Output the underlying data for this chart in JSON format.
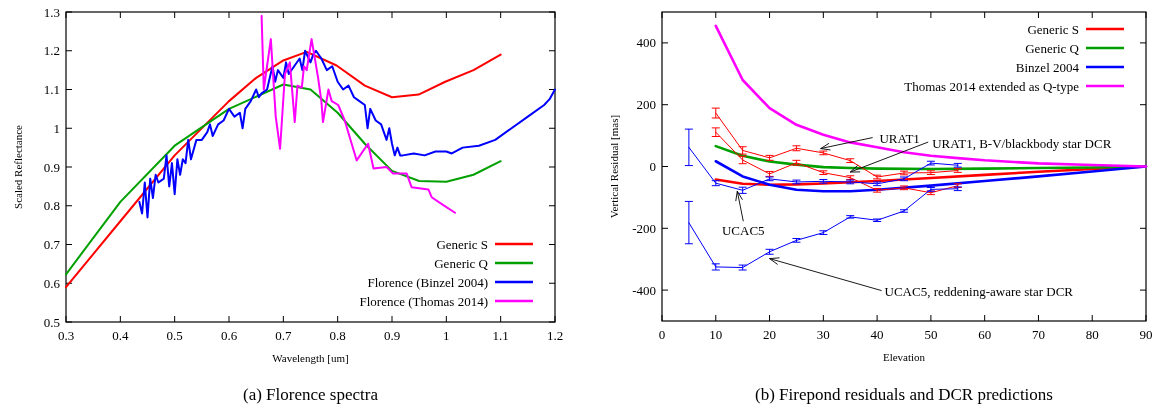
{
  "chart_data": [
    {
      "type": "line",
      "title": "(a)  Florence spectra",
      "xlabel": "Wavelength [um]",
      "ylabel": "Scaled Reflectance",
      "xlim": [
        0.3,
        1.2
      ],
      "ylim": [
        0.5,
        1.3
      ],
      "xticks": [
        0.3,
        0.4,
        0.5,
        0.6,
        0.7,
        0.8,
        0.9,
        1,
        1.1,
        1.2
      ],
      "yticks": [
        0.5,
        0.6,
        0.7,
        0.8,
        0.9,
        1,
        1.1,
        1.2,
        1.3
      ],
      "grid": false,
      "legend": "bottom right",
      "series": [
        {
          "name": "Generic S",
          "color": "#ff0000",
          "x": [
            0.3,
            0.4,
            0.5,
            0.6,
            0.65,
            0.7,
            0.743,
            0.798,
            0.85,
            0.9,
            0.949,
            0.998,
            1.05,
            1.1
          ],
          "values": [
            0.59,
            0.76,
            0.93,
            1.07,
            1.13,
            1.175,
            1.197,
            1.162,
            1.11,
            1.08,
            1.087,
            1.12,
            1.15,
            1.19
          ]
        },
        {
          "name": "Generic Q",
          "color": "#00a000",
          "x": [
            0.3,
            0.4,
            0.5,
            0.6,
            0.7,
            0.75,
            0.8,
            0.85,
            0.9,
            0.95,
            1.0,
            1.05,
            1.1
          ],
          "values": [
            0.623,
            0.81,
            0.955,
            1.05,
            1.113,
            1.1,
            1.04,
            0.96,
            0.89,
            0.864,
            0.862,
            0.88,
            0.915
          ]
        },
        {
          "name": "Florence (Binzel 2004)",
          "color": "#0000ff",
          "x": [
            0.435,
            0.44,
            0.445,
            0.45,
            0.455,
            0.46,
            0.465,
            0.47,
            0.48,
            0.485,
            0.49,
            0.495,
            0.5,
            0.505,
            0.51,
            0.515,
            0.52,
            0.525,
            0.53,
            0.54,
            0.55,
            0.56,
            0.565,
            0.57,
            0.58,
            0.59,
            0.6,
            0.61,
            0.62,
            0.625,
            0.63,
            0.64,
            0.65,
            0.655,
            0.66,
            0.67,
            0.68,
            0.685,
            0.69,
            0.7,
            0.705,
            0.71,
            0.72,
            0.73,
            0.735,
            0.74,
            0.75,
            0.755,
            0.76,
            0.77,
            0.78,
            0.79,
            0.8,
            0.81,
            0.82,
            0.83,
            0.84,
            0.85,
            0.855,
            0.86,
            0.87,
            0.88,
            0.89,
            0.895,
            0.9,
            0.905,
            0.91,
            0.915,
            0.92,
            0.94,
            0.96,
            0.98,
            1.0,
            1.01,
            1.03,
            1.06,
            1.09,
            1.12,
            1.15,
            1.18,
            1.19,
            1.2
          ],
          "values": [
            0.81,
            0.78,
            0.86,
            0.77,
            0.87,
            0.82,
            0.88,
            0.86,
            0.87,
            0.93,
            0.85,
            0.91,
            0.83,
            0.92,
            0.88,
            0.92,
            0.91,
            0.97,
            0.92,
            0.97,
            0.97,
            0.99,
            1.01,
            0.98,
            1.01,
            1.02,
            1.05,
            1.03,
            1.04,
            1.0,
            1.05,
            1.07,
            1.1,
            1.08,
            1.09,
            1.1,
            1.16,
            1.12,
            1.15,
            1.13,
            1.17,
            1.14,
            1.16,
            1.18,
            1.15,
            1.2,
            1.17,
            1.19,
            1.2,
            1.18,
            1.15,
            1.16,
            1.12,
            1.1,
            1.11,
            1.08,
            1.07,
            1.06,
            1.0,
            1.05,
            1.02,
            1.01,
            0.97,
            1.0,
            0.96,
            0.93,
            0.95,
            0.93,
            0.93,
            0.935,
            0.93,
            0.94,
            0.94,
            0.935,
            0.95,
            0.955,
            0.97,
            1.0,
            1.03,
            1.06,
            1.075,
            1.1
          ]
        },
        {
          "name": "Florence (Thomas 2014)",
          "color": "#ff00ff",
          "x": [
            0.66,
            0.664,
            0.677,
            0.686,
            0.694,
            0.703,
            0.712,
            0.721,
            0.726,
            0.734,
            0.738,
            0.743,
            0.752,
            0.764,
            0.77,
            0.773,
            0.783,
            0.789,
            0.801,
            0.813,
            0.835,
            0.856,
            0.866,
            0.89,
            0.902,
            0.927,
            0.936,
            0.967,
            0.973,
            0.991,
            1.016
          ],
          "values": [
            1.29,
            1.1,
            1.23,
            1.03,
            0.947,
            1.14,
            1.17,
            1.016,
            1.11,
            1.105,
            1.16,
            1.15,
            1.23,
            1.13,
            1.07,
            1.016,
            1.1,
            1.07,
            1.06,
            1.02,
            0.917,
            0.96,
            0.896,
            0.9,
            0.883,
            0.883,
            0.848,
            0.842,
            0.822,
            0.805,
            0.782
          ]
        }
      ]
    },
    {
      "type": "line",
      "title": "(b)  Firepond residuals and DCR predictions",
      "xlabel": "Elevation",
      "ylabel": "Vertical Residual [mas]",
      "xlim": [
        0,
        90
      ],
      "ylim": [
        -500,
        500
      ],
      "xticks": [
        0,
        10,
        20,
        30,
        40,
        50,
        60,
        70,
        80,
        90
      ],
      "yticks": [
        -400,
        -200,
        0,
        200,
        400
      ],
      "grid": false,
      "legend": "top right",
      "series": [
        {
          "name": "Generic S",
          "color": "#ff0000",
          "x": [
            10,
            15,
            20,
            25,
            30,
            40,
            50,
            60,
            70,
            80,
            90
          ],
          "values": [
            -42,
            -56,
            -59,
            -58,
            -55,
            -47,
            -37,
            -27,
            -17,
            -8,
            0
          ]
        },
        {
          "name": "Generic Q",
          "color": "#00a000",
          "x": [
            10,
            15,
            20,
            25,
            30,
            35,
            40,
            50,
            60,
            70,
            80,
            90
          ],
          "values": [
            66,
            35,
            16,
            6,
            -2,
            -5,
            -7,
            -8,
            -7,
            -5,
            -3,
            0
          ]
        },
        {
          "name": "Binzel 2004",
          "color": "#0000ff",
          "x": [
            10,
            15,
            20,
            25,
            30,
            35,
            40,
            50,
            60,
            70,
            80,
            90
          ],
          "values": [
            17,
            -32,
            -59,
            -75,
            -80,
            -80,
            -75,
            -62,
            -47,
            -32,
            -16,
            0
          ]
        },
        {
          "name": "Thomas 2014 extended as Q-type",
          "color": "#ff00ff",
          "x": [
            10,
            15,
            20,
            25,
            30,
            35,
            40,
            45,
            50,
            55,
            60,
            70,
            80,
            90
          ],
          "values": [
            455,
            280,
            189,
            135,
            103,
            78,
            62,
            46,
            35,
            27,
            20,
            10,
            5,
            0
          ]
        },
        {
          "color": "#ff0000",
          "x": [
            10,
            15,
            20,
            25,
            30,
            35,
            40,
            45,
            50,
            55
          ],
          "values": [
            173,
            52,
            28,
            59,
            44,
            19,
            -34,
            -21,
            -20,
            -13
          ],
          "errors": [
            16,
            12,
            8,
            8,
            6,
            6,
            6,
            6,
            6,
            6
          ]
        },
        {
          "color": "#ff0000",
          "x": [
            10,
            15,
            20,
            25,
            30,
            35,
            40,
            45,
            50,
            55
          ],
          "values": [
            111,
            21,
            -24,
            12,
            -20,
            -36,
            -77,
            -69,
            -85,
            -62
          ],
          "errors": [
            14,
            12,
            8,
            8,
            6,
            6,
            6,
            6,
            6,
            6
          ]
        },
        {
          "color": "#0000ff",
          "x": [
            5,
            10,
            15,
            20,
            25,
            30,
            35,
            40,
            45,
            50,
            55
          ],
          "values": [
            62,
            -54,
            -77,
            -40,
            -50,
            -48,
            -50,
            -56,
            -40,
            11,
            4
          ],
          "errors": [
            [
              3,
              121
            ],
            8,
            10,
            6,
            6,
            6,
            6,
            6,
            6,
            6,
            6
          ]
        },
        {
          "color": "#0000ff",
          "x": [
            5,
            10,
            15,
            20,
            25,
            30,
            35,
            40,
            45,
            50,
            55
          ],
          "values": [
            -182,
            -325,
            -327,
            -276,
            -239,
            -214,
            -163,
            -174,
            -144,
            -74,
            -72
          ],
          "errors": [
            [
              -250,
              -113
            ],
            10,
            8,
            8,
            6,
            6,
            4,
            4,
            4,
            6,
            6
          ]
        }
      ],
      "annotations": [
        {
          "text": "URAT1",
          "x": 29.5,
          "y": 58
        },
        {
          "text": "URAT1, B-V/blackbody star DCR",
          "x": 35,
          "y": -18
        },
        {
          "text": "UCAC5",
          "x": 14,
          "y": -80
        },
        {
          "text": "UCAC5, reddening-aware star DCR",
          "x": 20,
          "y": -298
        }
      ]
    }
  ]
}
